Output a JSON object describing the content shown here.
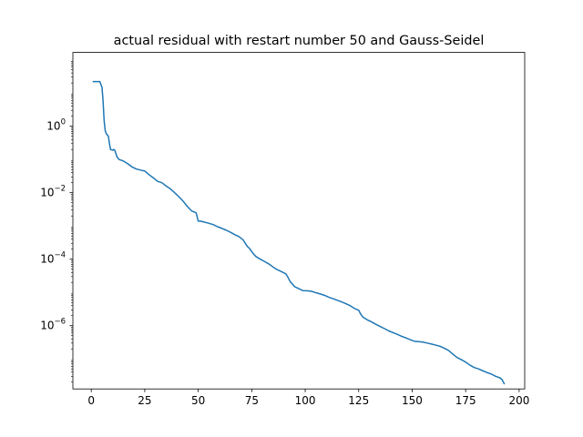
{
  "chart_data": {
    "type": "line",
    "title": "actual residual with restart number 50 and Gauss-Seidel",
    "xlabel": "",
    "ylabel": "",
    "yscale": "log",
    "xlim": [
      -8.6,
      202.6
    ],
    "ylim": [
      1.25e-08,
      166
    ],
    "grid": false,
    "x_ticks": [
      0,
      25,
      50,
      75,
      100,
      125,
      150,
      175,
      200
    ],
    "x_tick_labels": [
      "0",
      "25",
      "50",
      "75",
      "100",
      "125",
      "150",
      "175",
      "200"
    ],
    "y_ticks": [
      1e-06,
      0.0001,
      0.01,
      1
    ],
    "y_tick_labels": [
      {
        "base": "10",
        "exp": "−6"
      },
      {
        "base": "10",
        "exp": "−4"
      },
      {
        "base": "10",
        "exp": "−2"
      },
      {
        "base": "10",
        "exp": "0"
      }
    ],
    "series": [
      {
        "color": "#1f77b4",
        "x": [
          1,
          2,
          4,
          5,
          5.5,
          6,
          6.5,
          7,
          8,
          8.5,
          9,
          10,
          10.5,
          11,
          12,
          13,
          15,
          17,
          19,
          21,
          23,
          25,
          27,
          29,
          31,
          33,
          35,
          37,
          39,
          41,
          43,
          45,
          47,
          49,
          50,
          51,
          53,
          55,
          57,
          59,
          61,
          63,
          65,
          67,
          69,
          71,
          72,
          73,
          74,
          75,
          76,
          77,
          79,
          81,
          83,
          85,
          87,
          89,
          91,
          92,
          93,
          94,
          95,
          97,
          99,
          101,
          103,
          105,
          107,
          109,
          111,
          113,
          115,
          117,
          119,
          121,
          123,
          125,
          126,
          127,
          129,
          131,
          133,
          135,
          137,
          139,
          141,
          143,
          145,
          147,
          149,
          151,
          153,
          155,
          157,
          159,
          161,
          163,
          165,
          167,
          169,
          171,
          173,
          175,
          177,
          179,
          181,
          183,
          185,
          187,
          189,
          191,
          192,
          193
        ],
        "y": [
          22,
          22,
          22,
          15,
          6,
          1.5,
          0.75,
          0.6,
          0.5,
          0.3,
          0.2,
          0.19,
          0.2,
          0.19,
          0.12,
          0.1,
          0.09,
          0.075,
          0.06,
          0.052,
          0.048,
          0.045,
          0.035,
          0.028,
          0.022,
          0.02,
          0.016,
          0.013,
          0.01,
          0.0075,
          0.0055,
          0.0038,
          0.0028,
          0.0025,
          0.0014,
          0.0014,
          0.0013,
          0.0012,
          0.0011,
          0.00095,
          0.00085,
          0.00075,
          0.00065,
          0.00055,
          0.00048,
          0.00038,
          0.0003,
          0.00024,
          0.00021,
          0.00017,
          0.00014,
          0.00012,
          0.0001,
          8.5e-05,
          7.2e-05,
          5.8e-05,
          4.8e-05,
          4.2e-05,
          3.6e-05,
          2.8e-05,
          2.1e-05,
          1.8e-05,
          1.5e-05,
          1.3e-05,
          1.13e-05,
          1.12e-05,
          1.08e-05,
          9.8e-06,
          9e-06,
          8.2e-06,
          7.2e-06,
          6.5e-06,
          5.8e-06,
          5.2e-06,
          4.6e-06,
          4e-06,
          3.3e-06,
          2.9e-06,
          2.2e-06,
          1.8e-06,
          1.5e-06,
          1.3e-06,
          1.1e-06,
          9.5e-07,
          8.2e-07,
          7e-07,
          6.2e-07,
          5.5e-07,
          4.8e-07,
          4.3e-07,
          3.8e-07,
          3.4e-07,
          3.3e-07,
          3.2e-07,
          3e-07,
          2.8e-07,
          2.6e-07,
          2.4e-07,
          2.1e-07,
          1.8e-07,
          1.4e-07,
          1.1e-07,
          9.5e-08,
          8e-08,
          6.5e-08,
          5.5e-08,
          5e-08,
          4.4e-08,
          3.9e-08,
          3.5e-08,
          3e-08,
          2.7e-08,
          2.4e-08,
          1.8e-08
        ]
      }
    ]
  }
}
